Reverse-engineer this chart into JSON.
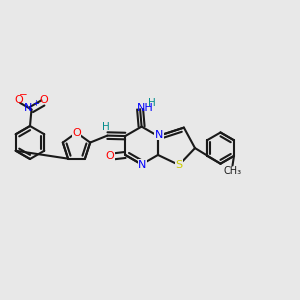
{
  "bg_color": "#e8e8e8",
  "bond_color": "#1a1a1a",
  "bond_width": 1.5,
  "atom_colors": {
    "N": "#0000ff",
    "O": "#ff0000",
    "S": "#cccc00",
    "H": "#008b8b",
    "C": "#1a1a1a"
  },
  "font_size": 7.5
}
